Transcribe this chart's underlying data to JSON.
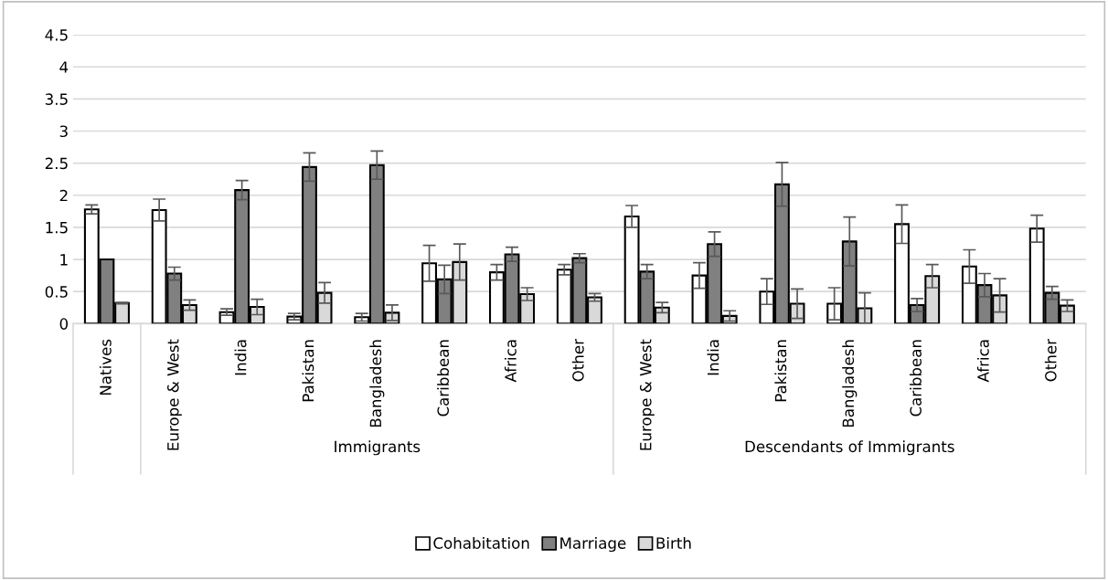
{
  "chart_data": {
    "type": "bar",
    "categories": [
      "Natives",
      "Europe & West",
      "India",
      "Pakistan",
      "Bangladesh",
      "Caribbean",
      "Africa",
      "Other",
      "Europe & West",
      "India",
      "Pakistan",
      "Bangladesh",
      "Caribbean",
      "Africa",
      "Other"
    ],
    "series": [
      {
        "name": "Cohabitation",
        "color": "#ffffff",
        "values": [
          1.78,
          1.77,
          0.18,
          0.11,
          0.1,
          0.94,
          0.8,
          0.84,
          1.67,
          0.75,
          0.5,
          0.31,
          1.55,
          0.89,
          1.48
        ],
        "errors": [
          0.07,
          0.17,
          0.05,
          0.05,
          0.06,
          0.28,
          0.12,
          0.08,
          0.17,
          0.2,
          0.2,
          0.25,
          0.3,
          0.26,
          0.21
        ]
      },
      {
        "name": "Marriage",
        "color": "#808080",
        "values": [
          1.0,
          0.78,
          2.08,
          2.44,
          2.47,
          0.69,
          1.08,
          1.02,
          0.81,
          1.24,
          2.17,
          1.28,
          0.29,
          0.6,
          0.48
        ],
        "errors": [
          null,
          0.1,
          0.15,
          0.22,
          0.22,
          0.22,
          0.11,
          0.07,
          0.11,
          0.19,
          0.34,
          0.38,
          0.1,
          0.18,
          0.1
        ]
      },
      {
        "name": "Birth",
        "color": "#d9d9d9",
        "values": [
          0.32,
          0.29,
          0.26,
          0.48,
          0.17,
          0.96,
          0.46,
          0.41,
          0.25,
          0.12,
          0.31,
          0.24,
          0.74,
          0.44,
          0.28
        ],
        "errors": [
          0.01,
          0.08,
          0.12,
          0.16,
          0.12,
          0.28,
          0.1,
          0.06,
          0.08,
          0.08,
          0.23,
          0.24,
          0.18,
          0.26,
          0.09
        ]
      }
    ],
    "annotations": [
      "Immigrants",
      "Descendants of Immigrants"
    ],
    "ylim": [
      0,
      4.5
    ],
    "yticks": [
      0,
      0.5,
      1,
      1.5,
      2,
      2.5,
      3,
      3.5,
      4,
      4.5
    ],
    "grid": "y",
    "legend": "bottom"
  }
}
